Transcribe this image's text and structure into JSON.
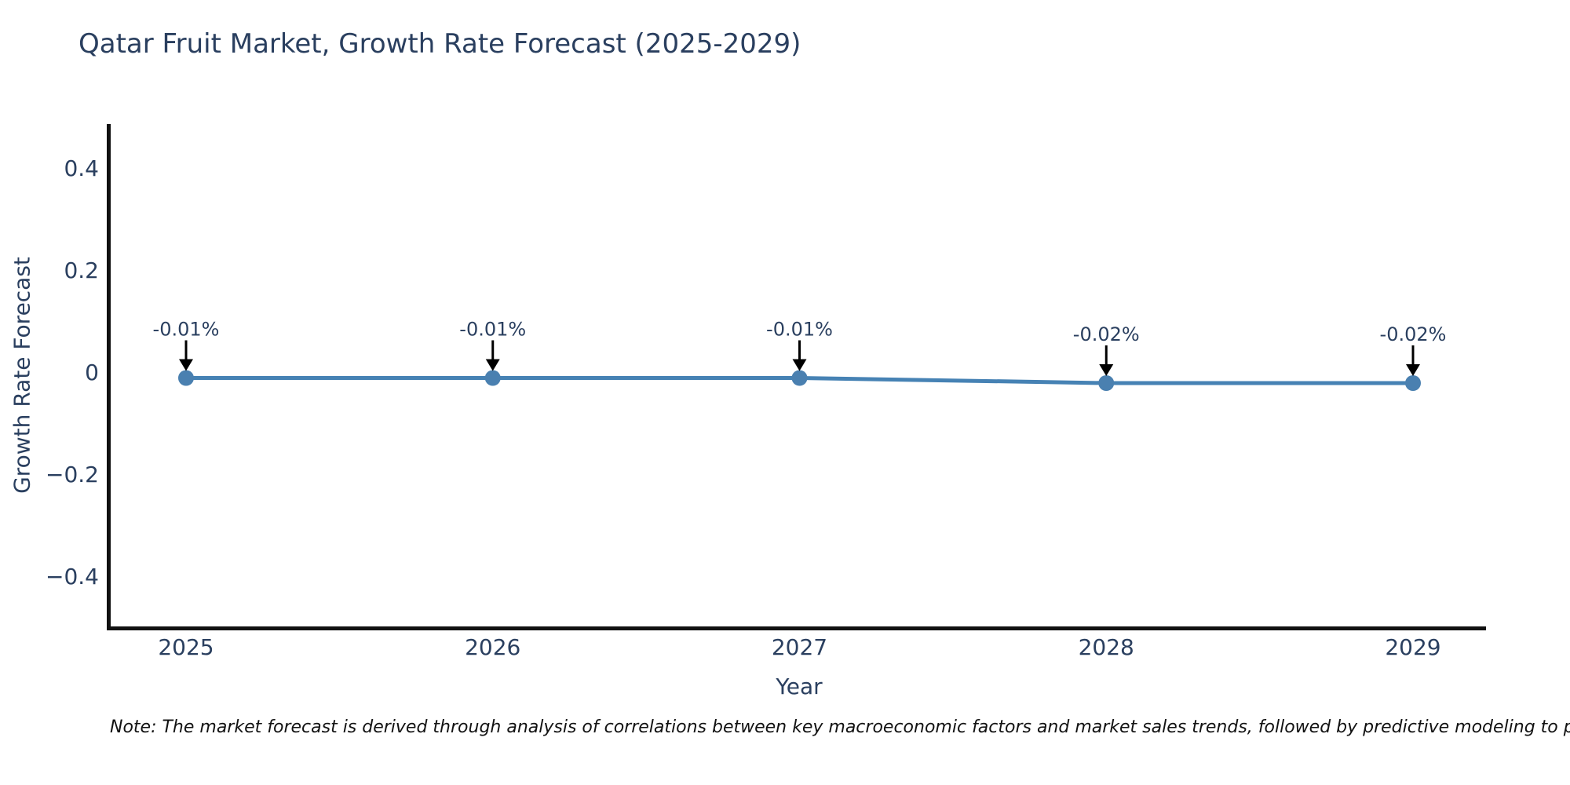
{
  "title": "Qatar Fruit Market, Growth Rate Forecast (2025-2029)",
  "note": "Note: The market forecast is derived through analysis of correlations between key macroeconomic factors and market sales trends, followed by predictive modeling to project future sales.",
  "chart_data": {
    "type": "line",
    "title": "Qatar Fruit Market, Growth Rate Forecast (2025-2029)",
    "xlabel": "Year",
    "ylabel": "Growth Rate Forecast",
    "x": [
      "2025",
      "2026",
      "2027",
      "2028",
      "2029"
    ],
    "series": [
      {
        "name": "Growth Rate Forecast",
        "values": [
          -0.01,
          -0.01,
          -0.01,
          -0.02,
          -0.02
        ],
        "point_labels": [
          "-0.01%",
          "-0.01%",
          "-0.01%",
          "-0.02%",
          "-0.02%"
        ]
      }
    ],
    "ylim": [
      -0.5,
      0.48
    ],
    "yticks": [
      {
        "value": 0.4,
        "label": "0.4"
      },
      {
        "value": 0.2,
        "label": "0.2"
      },
      {
        "value": 0,
        "label": "0"
      },
      {
        "value": -0.2,
        "label": "−0.2"
      },
      {
        "value": -0.4,
        "label": "−0.4"
      }
    ],
    "grid": false,
    "legend": "none",
    "annotation_style": "black-down-arrow",
    "colors": {
      "line": "#4682b4",
      "marker": "#4a80b0",
      "arrow": "#000000",
      "text": "#2a3f5f",
      "axis_line": "#111111"
    }
  }
}
